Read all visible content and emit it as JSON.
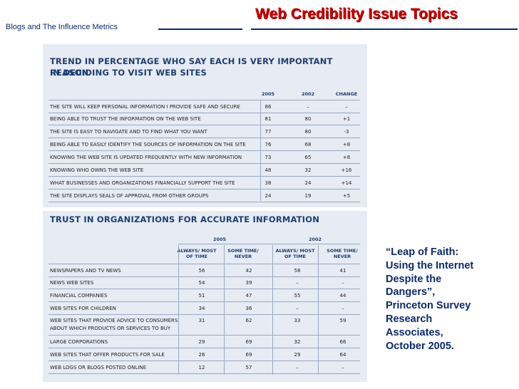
{
  "header": {
    "left_label": "Blogs and The Influence Metrics",
    "title": "Web Credibility Issue Topics"
  },
  "table1": {
    "title_line1": "TREND IN PERCENTAGE WHO SAY EACH IS VERY IMPORTANT REASON",
    "title_line2": "IN DECIDING TO VISIT WEB SITES",
    "columns": [
      "2005",
      "2002",
      "CHANGE"
    ],
    "rows": [
      {
        "label": "The site will keep personal information I provide safe and secure",
        "v2005": "86",
        "v2002": "–",
        "change": "–"
      },
      {
        "label": "Being able to trust the information on the web site",
        "v2005": "81",
        "v2002": "80",
        "change": "+1"
      },
      {
        "label": "The site is easy to navigate and to find what you want",
        "v2005": "77",
        "v2002": "80",
        "change": "-3"
      },
      {
        "label": "Being able to easily identify the sources of information on the site",
        "v2005": "76",
        "v2002": "68",
        "change": "+8"
      },
      {
        "label": "Knowing the web site is updated frequently with new information",
        "v2005": "73",
        "v2002": "65",
        "change": "+8"
      },
      {
        "label": "Knowing who owns the web site",
        "v2005": "48",
        "v2002": "32",
        "change": "+16"
      },
      {
        "label": "What businesses and organizations financially support the site",
        "v2005": "38",
        "v2002": "24",
        "change": "+14"
      },
      {
        "label": "The site displays seals of approval from other groups",
        "v2005": "24",
        "v2002": "19",
        "change": "+5"
      }
    ]
  },
  "table2": {
    "title": "TRUST IN ORGANIZATIONS FOR ACCURATE INFORMATION",
    "years": [
      "2005",
      "2002"
    ],
    "subcols": [
      "ALWAYS/ MOST OF TIME",
      "SOME TIME/ NEVER",
      "ALWAYS/ MOST OF TIME",
      "SOME TIME/ NEVER"
    ],
    "rows": [
      {
        "label": "Newspapers and TV news",
        "a05": "56",
        "s05": "42",
        "a02": "58",
        "s02": "41"
      },
      {
        "label": "News web sites",
        "a05": "54",
        "s05": "39",
        "a02": "–",
        "s02": "–"
      },
      {
        "label": "Financial companies",
        "a05": "51",
        "s05": "47",
        "a02": "55",
        "s02": "44"
      },
      {
        "label": "Web sites for children",
        "a05": "34",
        "s05": "36",
        "a02": "–",
        "s02": "–"
      },
      {
        "label": "Web sites that provide advice to consumers",
        "label2": "about which products or services to buy",
        "a05": "31",
        "s05": "62",
        "a02": "33",
        "s02": "59"
      },
      {
        "label": "Large corporations",
        "a05": "29",
        "s05": "69",
        "a02": "32",
        "s02": "66"
      },
      {
        "label": "Web sites that offer products for sale",
        "a05": "26",
        "s05": "69",
        "a02": "29",
        "s02": "64"
      },
      {
        "label": "Web logs or blogs posted online",
        "a05": "12",
        "s05": "57",
        "a02": "–",
        "s02": "–"
      }
    ]
  },
  "citation": {
    "line1": "“Leap of Faith:",
    "line2": "Using the Internet",
    "line3": "Despite the",
    "line4": "Dangers”,",
    "line5": "Princeton Survey",
    "line6": "Research",
    "line7": "Associates,",
    "line8": "October 2005."
  }
}
